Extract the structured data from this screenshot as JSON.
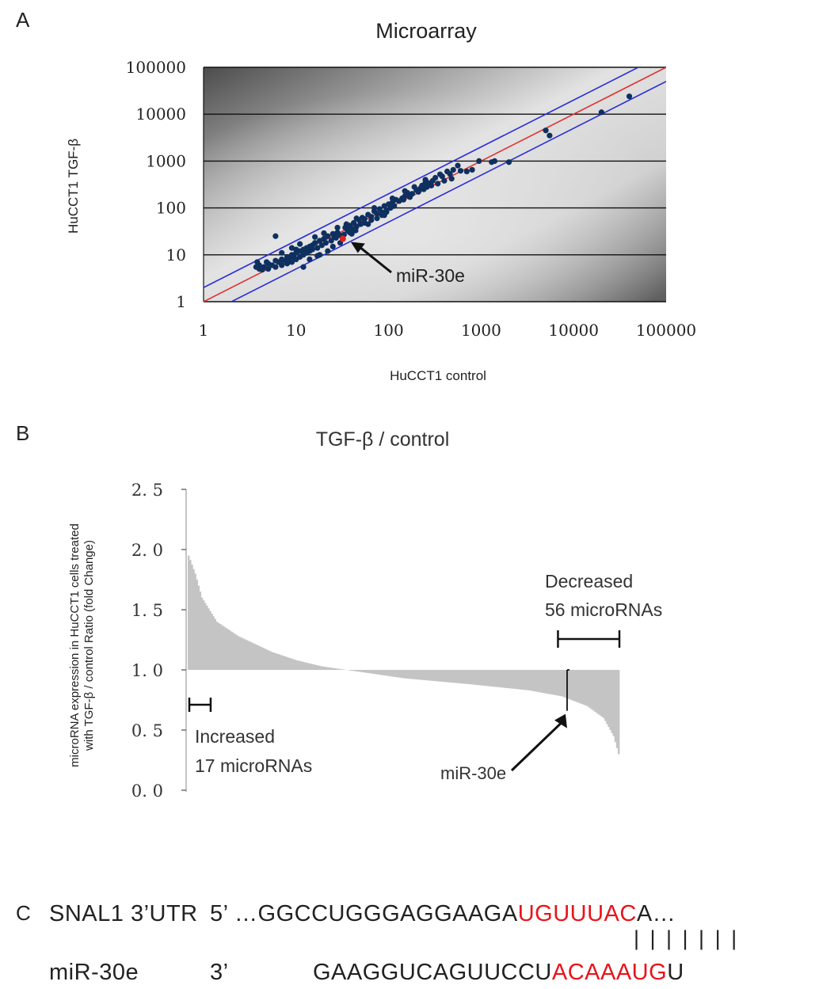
{
  "panels": {
    "a": "A",
    "b": "B",
    "c": "C"
  },
  "chart_data": [
    {
      "type": "scatter",
      "title": "Microarray",
      "xlabel": "HuCCT1 control",
      "ylabel": "HuCCT1 TGF-β",
      "x_scale": "log",
      "y_scale": "log",
      "xlim": [
        1,
        100000
      ],
      "ylim": [
        1,
        100000
      ],
      "x_ticks": [
        "1",
        "10",
        "100",
        "1000",
        "10000",
        "100000"
      ],
      "y_ticks": [
        "1",
        "10",
        "100",
        "1000",
        "10000",
        "100000"
      ],
      "grid": true,
      "reference_lines": [
        {
          "fold": 1,
          "color": "#e03030"
        },
        {
          "fold": 2,
          "color": "#2b2bd9"
        },
        {
          "fold": 0.5,
          "color": "#2b2bd9"
        }
      ],
      "highlight": {
        "label": "miR-30e",
        "x": 32,
        "y": 22,
        "color": "#e02020"
      },
      "colors": {
        "points": "#0e3060",
        "highlight": "#e02020"
      },
      "points": [
        [
          40000,
          24000
        ],
        [
          20000,
          11000
        ],
        [
          5500,
          3500
        ],
        [
          5000,
          4500
        ],
        [
          2000,
          950
        ],
        [
          1400,
          1000
        ],
        [
          1300,
          950
        ],
        [
          950,
          1000
        ],
        [
          800,
          650
        ],
        [
          700,
          600
        ],
        [
          600,
          620
        ],
        [
          560,
          800
        ],
        [
          500,
          650
        ],
        [
          480,
          420
        ],
        [
          460,
          530
        ],
        [
          430,
          600
        ],
        [
          400,
          380
        ],
        [
          380,
          470
        ],
        [
          360,
          520
        ],
        [
          340,
          330
        ],
        [
          320,
          440
        ],
        [
          300,
          380
        ],
        [
          290,
          300
        ],
        [
          270,
          340
        ],
        [
          260,
          280
        ],
        [
          250,
          400
        ],
        [
          240,
          250
        ],
        [
          230,
          300
        ],
        [
          220,
          260
        ],
        [
          210,
          220
        ],
        [
          200,
          240
        ],
        [
          190,
          280
        ],
        [
          180,
          200
        ],
        [
          170,
          170
        ],
        [
          160,
          210
        ],
        [
          150,
          180
        ],
        [
          145,
          150
        ],
        [
          140,
          160
        ],
        [
          130,
          140
        ],
        [
          120,
          150
        ],
        [
          115,
          110
        ],
        [
          110,
          130
        ],
        [
          105,
          100
        ],
        [
          100,
          120
        ],
        [
          95,
          90
        ],
        [
          90,
          110
        ],
        [
          85,
          80
        ],
        [
          80,
          95
        ],
        [
          75,
          75
        ],
        [
          70,
          85
        ],
        [
          65,
          65
        ],
        [
          60,
          72
        ],
        [
          55,
          58
        ],
        [
          52,
          62
        ],
        [
          50,
          45
        ],
        [
          48,
          55
        ],
        [
          45,
          40
        ],
        [
          42,
          48
        ],
        [
          40,
          36
        ],
        [
          38,
          42
        ],
        [
          36,
          33
        ],
        [
          34,
          38
        ],
        [
          30,
          26
        ],
        [
          28,
          30
        ],
        [
          26,
          24
        ],
        [
          25,
          28
        ],
        [
          24,
          20
        ],
        [
          22,
          25
        ],
        [
          21,
          18
        ],
        [
          20,
          22
        ],
        [
          19,
          16
        ],
        [
          18,
          20
        ],
        [
          17,
          14
        ],
        [
          16,
          18
        ],
        [
          15,
          13
        ],
        [
          15,
          16
        ],
        [
          14,
          12
        ],
        [
          14,
          15
        ],
        [
          13,
          11
        ],
        [
          13,
          14
        ],
        [
          12,
          10
        ],
        [
          12,
          13
        ],
        [
          11,
          9
        ],
        [
          11,
          12
        ],
        [
          10,
          8
        ],
        [
          10,
          11
        ],
        [
          10,
          13
        ],
        [
          9.5,
          9
        ],
        [
          9,
          7
        ],
        [
          9,
          10
        ],
        [
          8.5,
          8
        ],
        [
          8,
          6.5
        ],
        [
          8,
          9
        ],
        [
          7.5,
          7.5
        ],
        [
          7,
          6
        ],
        [
          7,
          8
        ],
        [
          6.5,
          7
        ],
        [
          6,
          5.5
        ],
        [
          6,
          25
        ],
        [
          6,
          7.5
        ],
        [
          5.5,
          6
        ],
        [
          5,
          5
        ],
        [
          5,
          6.5
        ],
        [
          4.8,
          7
        ],
        [
          4.5,
          5.5
        ],
        [
          4.3,
          4.8
        ],
        [
          4,
          6
        ],
        [
          4,
          5
        ],
        [
          3.8,
          7
        ],
        [
          3.7,
          5.5
        ],
        [
          18,
          10
        ],
        [
          25,
          15
        ],
        [
          17,
          9.5
        ],
        [
          22,
          12
        ],
        [
          12,
          5.5
        ],
        [
          30,
          18
        ],
        [
          14,
          8
        ],
        [
          40,
          28
        ],
        [
          60,
          45
        ],
        [
          90,
          70
        ],
        [
          35,
          45
        ],
        [
          28,
          38
        ],
        [
          20,
          29
        ],
        [
          16,
          24
        ],
        [
          11,
          17
        ],
        [
          9,
          14
        ],
        [
          7,
          11
        ],
        [
          45,
          60
        ],
        [
          70,
          100
        ],
        [
          110,
          160
        ],
        [
          150,
          230
        ],
        [
          250,
          350
        ],
        [
          27,
          23
        ],
        [
          33,
          27
        ],
        [
          38,
          30
        ],
        [
          44,
          33
        ],
        [
          55,
          48
        ],
        [
          65,
          55
        ],
        [
          75,
          60
        ],
        [
          85,
          70
        ],
        [
          95,
          82
        ]
      ]
    },
    {
      "type": "bar",
      "title": "TGF-β / control",
      "ylabel": "microRNA expression in HuCCT1 cells treated with TGF-β / control Ratio (fold Change)",
      "ylim": [
        0,
        2.5
      ],
      "y_ticks": [
        "0. 0",
        "0. 5",
        "1. 0",
        "1. 5",
        "2. 0",
        "2. 5"
      ],
      "baseline": 1.0,
      "bar_count": 260,
      "values_profile": [
        [
          0,
          1.95
        ],
        [
          4,
          1.8
        ],
        [
          8,
          1.6
        ],
        [
          17,
          1.4
        ],
        [
          30,
          1.28
        ],
        [
          50,
          1.15
        ],
        [
          65,
          1.08
        ],
        [
          80,
          1.03
        ],
        [
          95,
          1.0
        ],
        [
          130,
          0.93
        ],
        [
          170,
          0.88
        ],
        [
          205,
          0.83
        ],
        [
          225,
          0.78
        ],
        [
          240,
          0.7
        ],
        [
          250,
          0.6
        ],
        [
          256,
          0.45
        ],
        [
          259,
          0.3
        ]
      ],
      "bar_color": "#c4c4c4",
      "annotations": {
        "increased": {
          "line1": "Increased",
          "line2": "17 microRNAs",
          "from_bar": 0,
          "to_bar": 10
        },
        "decreased": {
          "line1": "Decreased",
          "line2": "56 microRNAs",
          "from_bar": 223,
          "to_bar": 259
        },
        "highlight": {
          "label": "miR-30e",
          "bar": 228,
          "value": 0.66
        }
      }
    }
  ],
  "sequence": {
    "snai1_label": "SNAL1 3’UTR",
    "snai1_prefix": "5’ …GGCCUGGGAGGAAGA",
    "snai1_seed": "UGUUUAC",
    "snai1_suffix": "A…",
    "pairs": "| | | | | | |",
    "mir_label": "miR-30e",
    "mir_prefix": "3’",
    "mir_body": "GAAGGUCAGUUCCU",
    "mir_seed": "ACAAAUG",
    "mir_suffix": "U",
    "seed_color": "#e8141b"
  }
}
